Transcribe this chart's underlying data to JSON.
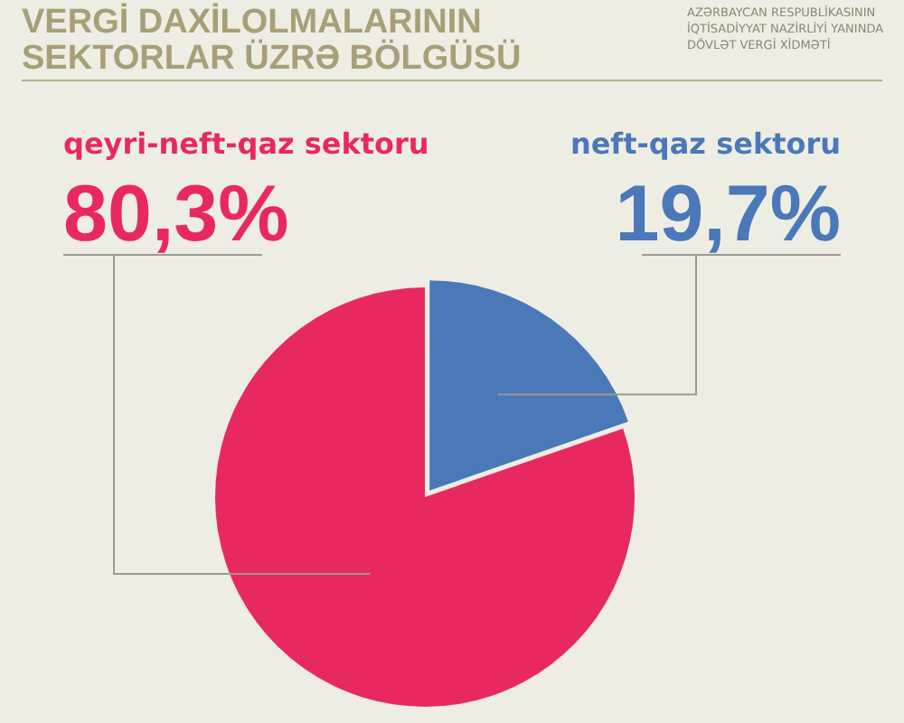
{
  "chart_data": {
    "type": "pie",
    "title": "VERGİ DAXİLOLMALARININ SEKTORLAR ÜZRƏ BÖLGÜSÜ",
    "annotations": [
      "AZƏRBAYCAN RESPUBLİKASININ İQTİSADİYYAT NAZİRLİYİ YANINDA DÖVLƏT VERGİ XİDMƏTİ"
    ],
    "categories": [
      "qeyri-neft-qaz sektoru",
      "neft-qaz sektoru"
    ],
    "values": [
      80.3,
      19.7
    ],
    "value_labels": [
      "80,3%",
      "19,7%"
    ],
    "colors": [
      "#e8295f",
      "#4a78b8"
    ]
  }
}
